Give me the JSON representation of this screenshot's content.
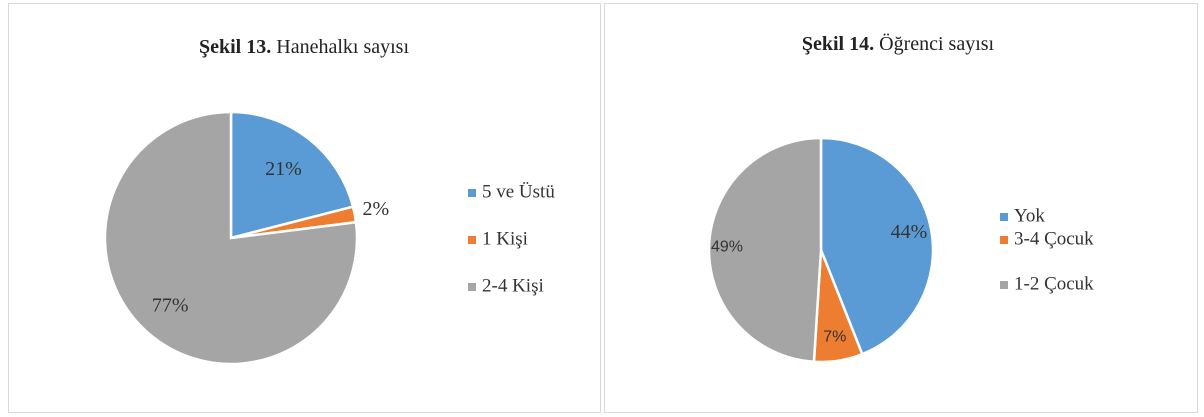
{
  "charts": [
    {
      "chart_data": {
        "type": "pie",
        "figure_label": "Şekil 13.",
        "title": "Hanehalkı sayısı",
        "categories": [
          "5 ve Üstü",
          "1 Kişi",
          "2-4 Kişi"
        ],
        "values": [
          21,
          2,
          77
        ],
        "value_labels": [
          "21%",
          "2%",
          "77%"
        ],
        "colors": [
          "#5b9bd5",
          "#ed7d31",
          "#a5a5a5"
        ],
        "legend": "right"
      }
    },
    {
      "chart_data": {
        "type": "pie",
        "figure_label": "Şekil 14.",
        "title": "Öğrenci sayısı",
        "categories": [
          "Yok",
          "3-4 Çocuk",
          "1-2 Çocuk"
        ],
        "values": [
          44,
          7,
          49
        ],
        "value_labels": [
          "44%",
          "7%",
          "49%"
        ],
        "colors": [
          "#5b9bd5",
          "#ed7d31",
          "#a5a5a5"
        ],
        "legend": "right"
      }
    }
  ]
}
